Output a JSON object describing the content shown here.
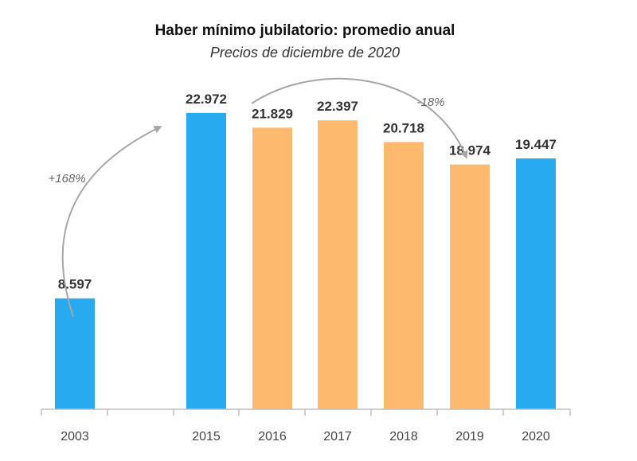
{
  "chart_data": {
    "type": "bar",
    "title": "Haber mínimo jubilatorio: promedio anual",
    "subtitle": "Precios de diciembre de 2020",
    "categories": [
      "2003",
      "2015",
      "2016",
      "2017",
      "2018",
      "2019",
      "2020"
    ],
    "values": [
      8597,
      22972,
      21829,
      22397,
      20718,
      18974,
      19447
    ],
    "value_labels": [
      "8.597",
      "22.972",
      "21.829",
      "22.397",
      "20.718",
      "18.974",
      "19.447"
    ],
    "bar_colors": [
      "#27aaf0",
      "#27aaf0",
      "#fdb96d",
      "#fdb96d",
      "#fdb96d",
      "#fdb96d",
      "#27aaf0"
    ],
    "ylim": [
      0,
      25000
    ],
    "grid": false,
    "annotations": [
      {
        "text": "+168%",
        "from": "2003",
        "to": "2015"
      },
      {
        "text": "-18%",
        "from": "2015",
        "to": "2019"
      }
    ]
  },
  "colors": {
    "blue": "#27aaf0",
    "orange": "#fdb96d",
    "arrow": "#a6a6a6",
    "axis": "#bfbfbf"
  }
}
